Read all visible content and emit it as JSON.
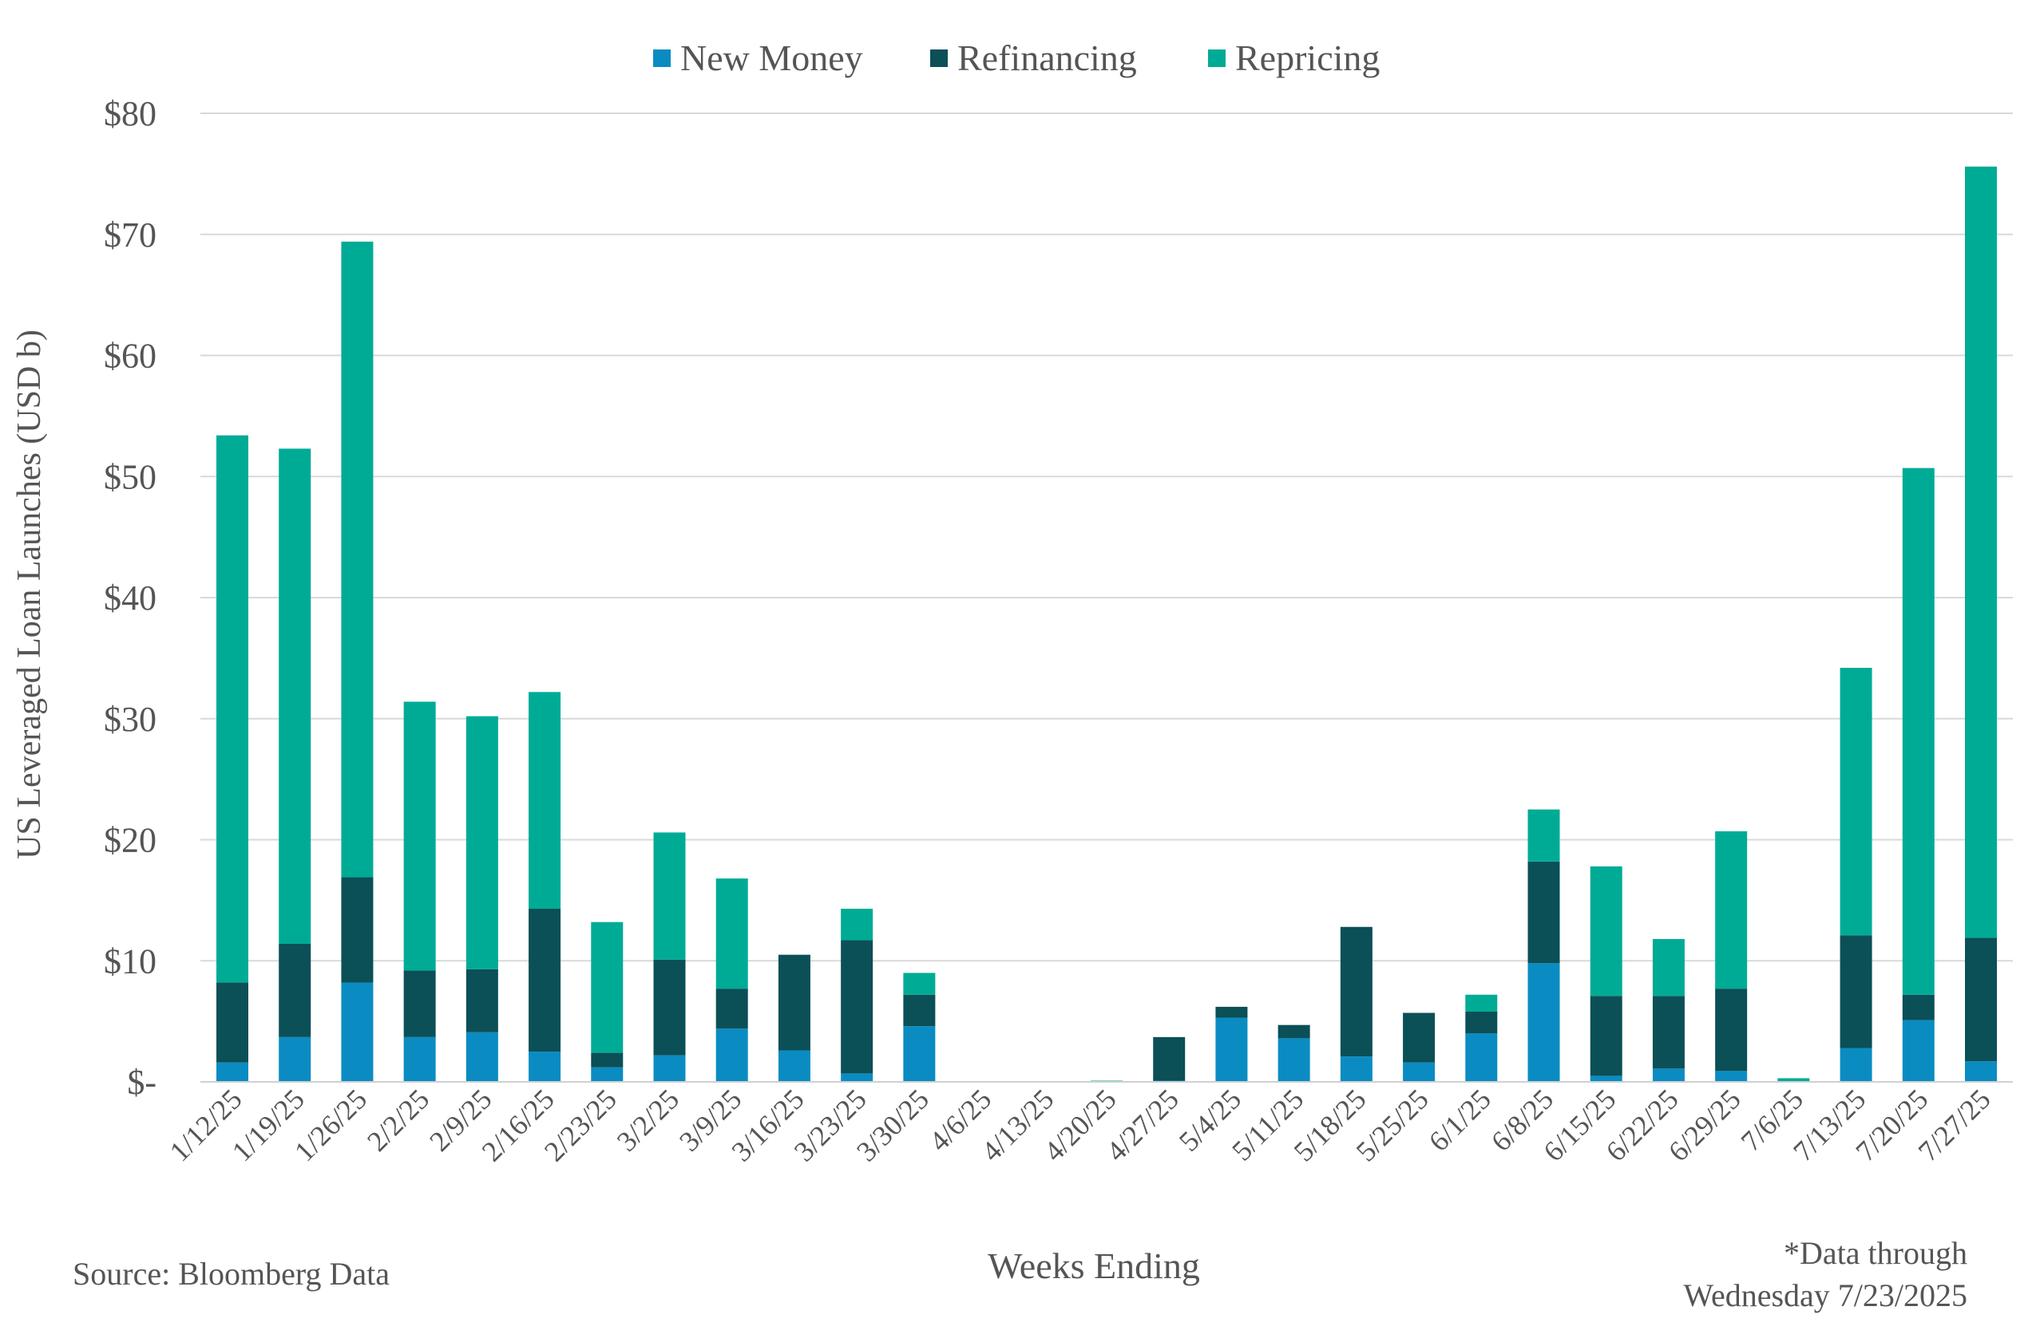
{
  "chart_data": {
    "type": "bar",
    "stacked": true,
    "title": "",
    "xlabel": "Weeks Ending",
    "ylabel": "US Leveraged Loan Launches (USD b)",
    "ylim": [
      0,
      80
    ],
    "yticks": [
      0,
      10,
      20,
      30,
      40,
      50,
      60,
      70,
      80
    ],
    "ytick_labels": [
      "$-",
      "$10",
      "$20",
      "$30",
      "$40",
      "$50",
      "$60",
      "$70",
      "$80"
    ],
    "grid": true,
    "legend_position": "top-center",
    "categories": [
      "1/12/25",
      "1/19/25",
      "1/26/25",
      "2/2/25",
      "2/9/25",
      "2/16/25",
      "2/23/25",
      "3/2/25",
      "3/9/25",
      "3/16/25",
      "3/23/25",
      "3/30/25",
      "4/6/25",
      "4/13/25",
      "4/20/25",
      "4/27/25",
      "5/4/25",
      "5/11/25",
      "5/18/25",
      "5/25/25",
      "6/1/25",
      "6/8/25",
      "6/15/25",
      "6/22/25",
      "6/29/25",
      "7/6/25",
      "7/13/25",
      "7/20/25",
      "7/27/25"
    ],
    "series": [
      {
        "name": "New Money",
        "color": "#0a8cc2",
        "values": [
          1.6,
          3.7,
          8.2,
          3.7,
          4.1,
          2.5,
          1.2,
          2.2,
          4.4,
          2.6,
          0.7,
          4.6,
          0,
          0,
          0,
          0.1,
          5.3,
          3.6,
          2.1,
          1.6,
          4.0,
          9.8,
          0.5,
          1.1,
          0.9,
          0,
          2.8,
          5.1,
          1.7
        ]
      },
      {
        "name": "Refinancing",
        "color": "#0b4f57",
        "values": [
          6.6,
          7.7,
          8.7,
          5.5,
          5.2,
          11.8,
          1.2,
          7.9,
          3.3,
          7.9,
          11.0,
          2.6,
          0,
          0,
          0,
          3.6,
          0.9,
          1.1,
          10.7,
          4.1,
          1.8,
          8.4,
          6.6,
          6.0,
          6.8,
          0,
          9.3,
          2.1,
          10.2
        ]
      },
      {
        "name": "Repricing",
        "color": "#00ab96",
        "values": [
          45.2,
          40.9,
          52.5,
          22.2,
          20.9,
          17.9,
          10.8,
          10.5,
          9.1,
          0,
          2.6,
          1.8,
          0,
          0,
          0.1,
          0,
          0,
          0,
          0,
          0,
          1.4,
          4.3,
          10.7,
          4.7,
          13.0,
          0.3,
          22.1,
          43.5,
          63.7
        ]
      }
    ],
    "annotations": {
      "source": "Source: Bloomberg Data",
      "note_line1": "*Data through",
      "note_line2": "Wednesday 7/23/2025"
    }
  }
}
